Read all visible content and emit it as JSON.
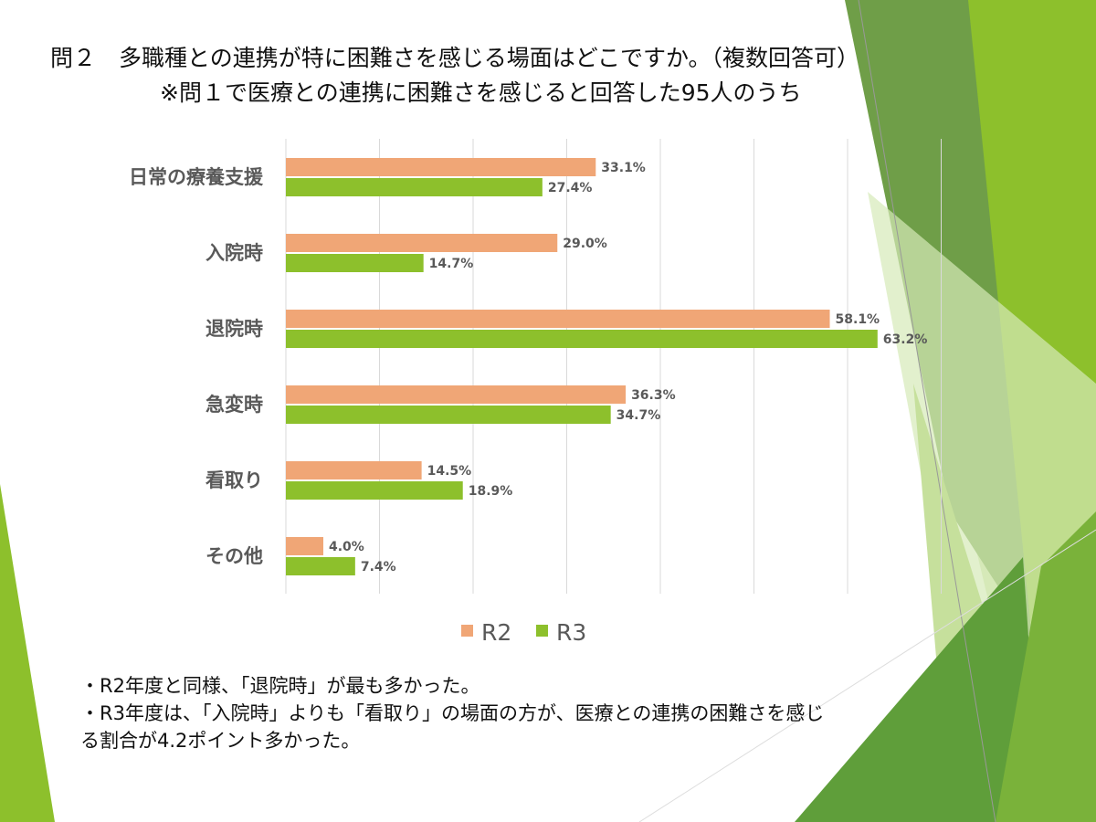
{
  "title": {
    "line1": "問２　多職種との連携が特に困難さを感じる場面はどこですか。（複数回答可）",
    "line2": "※問１で医療との連携に困難さを感じると回答した95人のうち"
  },
  "chart_data": {
    "type": "bar",
    "orientation": "horizontal",
    "categories": [
      "日常の療養支援",
      "入院時",
      "退院時",
      "急変時",
      "看取り",
      "その他"
    ],
    "series": [
      {
        "name": "R2",
        "color": "#f0a676",
        "values": [
          33.1,
          29.0,
          58.1,
          36.3,
          14.5,
          4.0
        ],
        "labels": [
          "33.1%",
          "29.0%",
          "58.1%",
          "36.3%",
          "14.5%",
          "4.0%"
        ]
      },
      {
        "name": "R3",
        "color": "#8dc02c",
        "values": [
          27.4,
          14.7,
          63.2,
          34.7,
          18.9,
          7.4
        ],
        "labels": [
          "27.4%",
          "14.7%",
          "63.2%",
          "34.7%",
          "18.9%",
          "7.4%"
        ]
      }
    ],
    "xlim": [
      0,
      70
    ],
    "grid_step": 10,
    "grid": true,
    "legend_position": "bottom"
  },
  "notes": [
    "・R2年度と同様、「退院時」が最も多かった。",
    "・R3年度は、「入院時」よりも「看取り」の場面の方が、医療との連携の困難さを感じ",
    "る割合が4.2ポイント多かった。"
  ]
}
